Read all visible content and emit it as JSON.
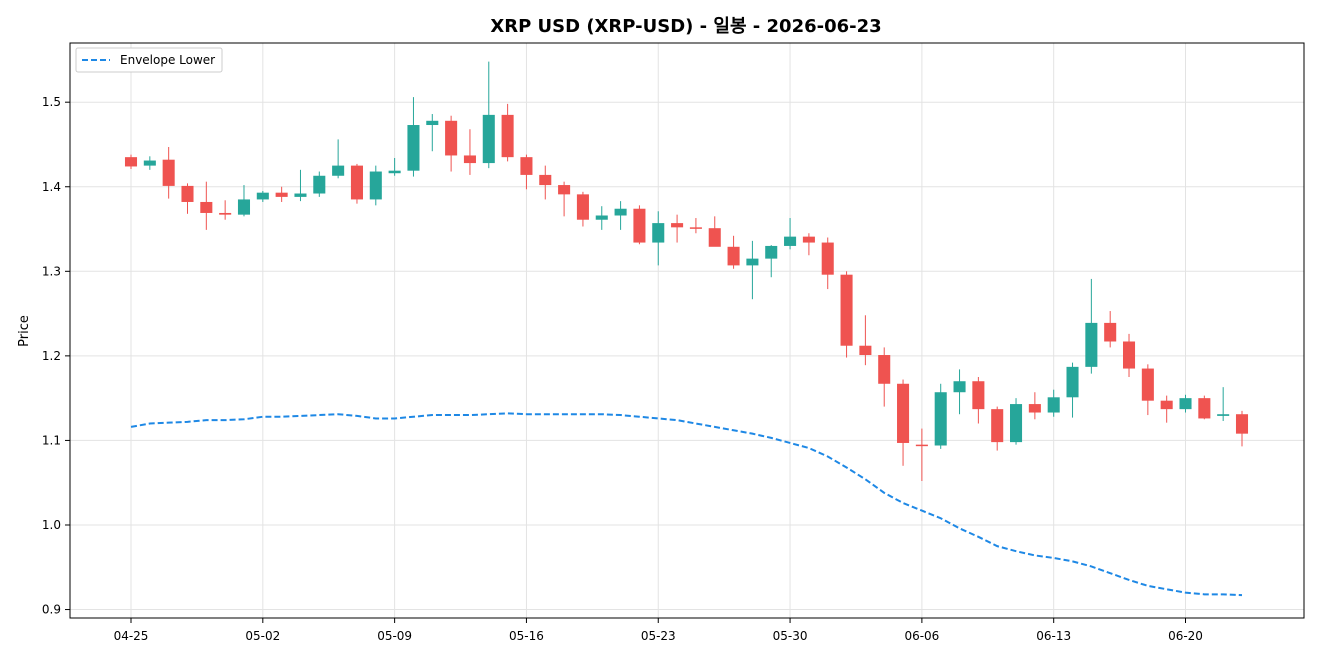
{
  "chart_data": {
    "type": "candlestick",
    "title": "XRP USD (XRP-USD) - 일봉 - 2026-06-23",
    "xlabel": "",
    "ylabel": "Price",
    "ylim": [
      0.89,
      1.57
    ],
    "yticks": [
      0.9,
      1.0,
      1.1,
      1.2,
      1.3,
      1.4,
      1.5
    ],
    "xticks": [
      "04-25",
      "05-02",
      "05-09",
      "05-16",
      "05-23",
      "05-30",
      "06-06",
      "06-13",
      "06-20"
    ],
    "grid": true,
    "legend_position": "top-left",
    "colors": {
      "up": "#26a69a",
      "down": "#ef5350",
      "envelope": "#1e88e5"
    },
    "dates": [
      "04-25",
      "04-26",
      "04-27",
      "04-28",
      "04-29",
      "04-30",
      "05-01",
      "05-02",
      "05-03",
      "05-04",
      "05-05",
      "05-06",
      "05-07",
      "05-08",
      "05-09",
      "05-10",
      "05-11",
      "05-12",
      "05-13",
      "05-14",
      "05-15",
      "05-16",
      "05-17",
      "05-18",
      "05-19",
      "05-20",
      "05-21",
      "05-22",
      "05-23",
      "05-24",
      "05-25",
      "05-26",
      "05-27",
      "05-28",
      "05-29",
      "05-30",
      "05-31",
      "06-01",
      "06-02",
      "06-03",
      "06-04",
      "06-05",
      "06-06",
      "06-07",
      "06-08",
      "06-09",
      "06-10",
      "06-11",
      "06-12",
      "06-13",
      "06-14",
      "06-15",
      "06-16",
      "06-17",
      "06-18",
      "06-19",
      "06-20",
      "06-21",
      "06-22",
      "06-23"
    ],
    "series": [
      {
        "name": "",
        "kind": "ohlc",
        "open": [
          1.435,
          1.425,
          1.432,
          1.401,
          1.382,
          1.369,
          1.367,
          1.385,
          1.393,
          1.388,
          1.392,
          1.413,
          1.425,
          1.385,
          1.416,
          1.419,
          1.473,
          1.478,
          1.437,
          1.428,
          1.485,
          1.435,
          1.414,
          1.402,
          1.391,
          1.361,
          1.366,
          1.374,
          1.334,
          1.357,
          1.352,
          1.351,
          1.329,
          1.307,
          1.315,
          1.33,
          1.341,
          1.334,
          1.296,
          1.212,
          1.201,
          1.167,
          1.095,
          1.094,
          1.157,
          1.17,
          1.137,
          1.098,
          1.143,
          1.133,
          1.151,
          1.187,
          1.239,
          1.217,
          1.185,
          1.147,
          1.137,
          1.15,
          1.129,
          1.131
        ],
        "high": [
          1.438,
          1.436,
          1.447,
          1.404,
          1.406,
          1.384,
          1.402,
          1.395,
          1.4,
          1.42,
          1.418,
          1.456,
          1.427,
          1.425,
          1.434,
          1.506,
          1.486,
          1.484,
          1.468,
          1.548,
          1.498,
          1.438,
          1.425,
          1.406,
          1.394,
          1.377,
          1.383,
          1.378,
          1.371,
          1.367,
          1.363,
          1.365,
          1.342,
          1.336,
          1.331,
          1.363,
          1.345,
          1.34,
          1.3,
          1.248,
          1.21,
          1.172,
          1.114,
          1.167,
          1.184,
          1.175,
          1.14,
          1.15,
          1.157,
          1.16,
          1.192,
          1.291,
          1.253,
          1.226,
          1.19,
          1.153,
          1.154,
          1.153,
          1.163,
          1.135
        ],
        "low": [
          1.421,
          1.42,
          1.386,
          1.368,
          1.349,
          1.361,
          1.365,
          1.382,
          1.382,
          1.383,
          1.388,
          1.41,
          1.38,
          1.378,
          1.413,
          1.412,
          1.442,
          1.418,
          1.414,
          1.422,
          1.43,
          1.397,
          1.385,
          1.365,
          1.353,
          1.349,
          1.349,
          1.332,
          1.307,
          1.334,
          1.345,
          1.33,
          1.303,
          1.267,
          1.293,
          1.326,
          1.319,
          1.279,
          1.198,
          1.189,
          1.14,
          1.07,
          1.052,
          1.09,
          1.131,
          1.12,
          1.088,
          1.095,
          1.125,
          1.128,
          1.127,
          1.179,
          1.21,
          1.175,
          1.13,
          1.121,
          1.133,
          1.125,
          1.123,
          1.093
        ],
        "close": [
          1.424,
          1.431,
          1.401,
          1.382,
          1.369,
          1.367,
          1.385,
          1.393,
          1.388,
          1.392,
          1.413,
          1.425,
          1.385,
          1.418,
          1.419,
          1.473,
          1.478,
          1.437,
          1.428,
          1.485,
          1.435,
          1.414,
          1.402,
          1.391,
          1.361,
          1.366,
          1.374,
          1.334,
          1.357,
          1.352,
          1.351,
          1.329,
          1.307,
          1.315,
          1.33,
          1.341,
          1.334,
          1.296,
          1.212,
          1.201,
          1.167,
          1.097,
          1.094,
          1.157,
          1.17,
          1.137,
          1.098,
          1.143,
          1.133,
          1.151,
          1.187,
          1.239,
          1.217,
          1.185,
          1.147,
          1.137,
          1.15,
          1.126,
          1.131,
          1.108
        ]
      },
      {
        "name": "Envelope Lower",
        "kind": "line",
        "values": [
          1.116,
          1.12,
          1.121,
          1.122,
          1.124,
          1.124,
          1.125,
          1.128,
          1.128,
          1.129,
          1.13,
          1.131,
          1.129,
          1.126,
          1.126,
          1.128,
          1.13,
          1.13,
          1.13,
          1.131,
          1.132,
          1.131,
          1.131,
          1.131,
          1.131,
          1.131,
          1.13,
          1.128,
          1.126,
          1.124,
          1.12,
          1.116,
          1.112,
          1.108,
          1.103,
          1.097,
          1.091,
          1.081,
          1.068,
          1.054,
          1.038,
          1.026,
          1.017,
          1.008,
          0.996,
          0.986,
          0.975,
          0.969,
          0.964,
          0.961,
          0.957,
          0.951,
          0.943,
          0.935,
          0.928,
          0.924,
          0.92,
          0.918,
          0.918,
          0.917
        ]
      }
    ]
  }
}
